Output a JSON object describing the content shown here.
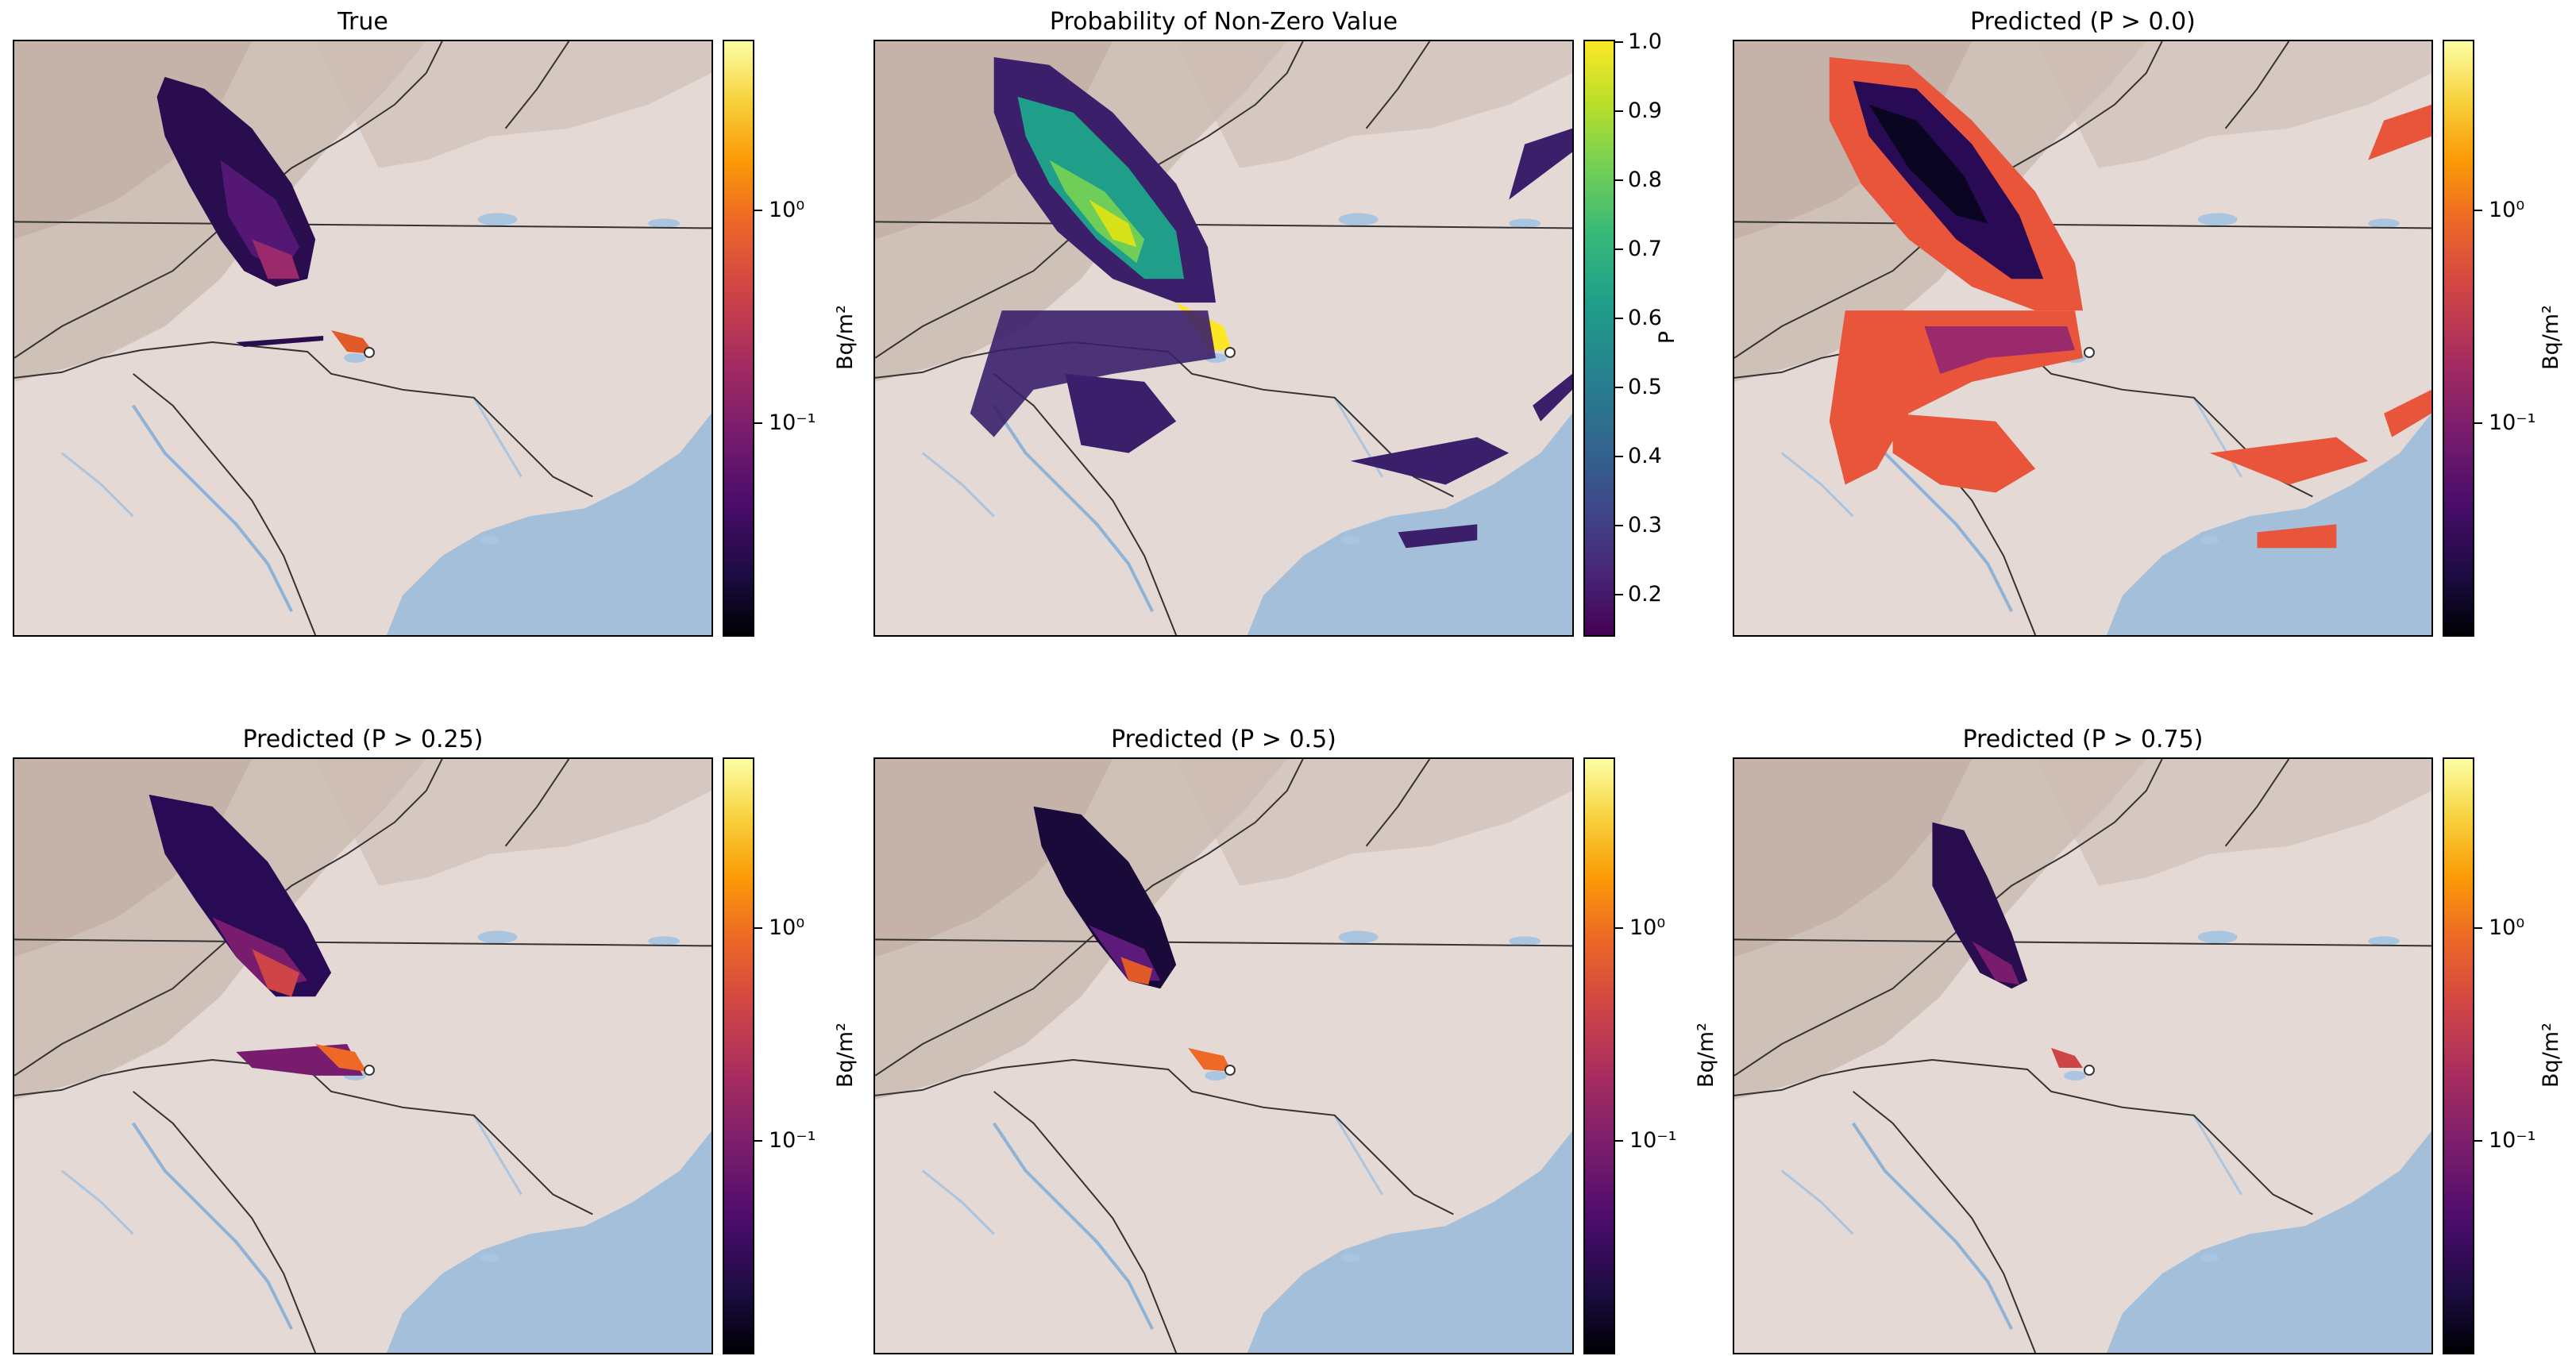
{
  "figure": {
    "panels": [
      {
        "title": "True",
        "colorbar": {
          "label": "Bq/m²",
          "scale": "log",
          "colormap": "inferno",
          "ticks": [
            "10⁰",
            "10⁻¹"
          ]
        }
      },
      {
        "title": "Probability of Non-Zero Value",
        "colorbar": {
          "label": "P",
          "scale": "linear",
          "colormap": "viridis",
          "ticks": [
            "1.0",
            "0.9",
            "0.8",
            "0.7",
            "0.6",
            "0.5",
            "0.4",
            "0.3",
            "0.2"
          ]
        }
      },
      {
        "title": "Predicted (P > 0.0)",
        "colorbar": {
          "label": "Bq/m²",
          "scale": "log",
          "colormap": "inferno",
          "ticks": [
            "10⁰",
            "10⁻¹"
          ]
        }
      },
      {
        "title": "Predicted (P > 0.25)",
        "colorbar": {
          "label": "Bq/m²",
          "scale": "log",
          "colormap": "inferno",
          "ticks": [
            "10⁰",
            "10⁻¹"
          ]
        }
      },
      {
        "title": "Predicted (P > 0.5)",
        "colorbar": {
          "label": "Bq/m²",
          "scale": "log",
          "colormap": "inferno",
          "ticks": [
            "10⁰",
            "10⁻¹"
          ]
        }
      },
      {
        "title": "Predicted (P > 0.75)",
        "colorbar": {
          "label": "Bq/m²",
          "scale": "log",
          "colormap": "inferno",
          "ticks": [
            "10⁰",
            "10⁻¹"
          ]
        }
      }
    ]
  },
  "colors": {
    "land": "#e4d9d5",
    "water": "#a3bfd9",
    "relief": "#c7b3a8",
    "border": "#333333"
  }
}
